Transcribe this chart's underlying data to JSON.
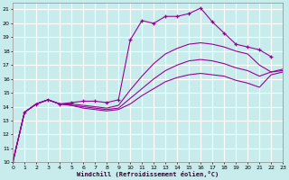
{
  "xlabel": "Windchill (Refroidissement éolien,°C)",
  "bg_color": "#c8ecec",
  "grid_color": "#ffffff",
  "line_color": "#990099",
  "xlim": [
    0,
    23
  ],
  "ylim": [
    10,
    21.5
  ],
  "xticks": [
    0,
    1,
    2,
    3,
    4,
    5,
    6,
    7,
    8,
    9,
    10,
    11,
    12,
    13,
    14,
    15,
    16,
    17,
    18,
    19,
    20,
    21,
    22,
    23
  ],
  "yticks": [
    10,
    11,
    12,
    13,
    14,
    15,
    16,
    17,
    18,
    19,
    20,
    21
  ],
  "curves": [
    {
      "x": [
        0,
        1,
        2,
        3,
        4,
        5,
        6,
        7,
        8,
        9,
        10,
        11,
        12,
        13,
        14,
        15,
        16,
        17,
        18,
        19,
        20,
        21,
        22
      ],
      "y": [
        10.0,
        13.6,
        14.2,
        14.5,
        14.2,
        14.3,
        14.4,
        14.4,
        14.3,
        14.5,
        18.8,
        20.2,
        20.0,
        20.5,
        20.5,
        20.7,
        21.1,
        20.1,
        19.3,
        18.5,
        18.3,
        18.1,
        17.6
      ],
      "has_markers": true
    },
    {
      "x": [
        0,
        1,
        2,
        3,
        4,
        5,
        6,
        7,
        8,
        9,
        10,
        11,
        12,
        13,
        14,
        15,
        16,
        17,
        18,
        19,
        20,
        21,
        22,
        23
      ],
      "y": [
        10.0,
        13.6,
        14.2,
        14.5,
        14.2,
        14.2,
        14.1,
        14.0,
        13.9,
        14.1,
        15.2,
        16.2,
        17.1,
        17.8,
        18.2,
        18.5,
        18.6,
        18.5,
        18.3,
        18.0,
        17.8,
        17.0,
        16.5,
        16.7
      ],
      "has_markers": false
    },
    {
      "x": [
        0,
        1,
        2,
        3,
        4,
        5,
        6,
        7,
        8,
        9,
        10,
        11,
        12,
        13,
        14,
        15,
        16,
        17,
        18,
        19,
        20,
        21,
        22,
        23
      ],
      "y": [
        10.0,
        13.6,
        14.2,
        14.5,
        14.2,
        14.1,
        14.0,
        13.9,
        13.8,
        13.9,
        14.6,
        15.3,
        16.0,
        16.6,
        17.0,
        17.3,
        17.4,
        17.3,
        17.1,
        16.8,
        16.6,
        16.2,
        16.5,
        16.6
      ],
      "has_markers": false
    },
    {
      "x": [
        0,
        1,
        2,
        3,
        4,
        5,
        6,
        7,
        8,
        9,
        10,
        11,
        12,
        13,
        14,
        15,
        16,
        17,
        18,
        19,
        20,
        21,
        22,
        23
      ],
      "y": [
        10.0,
        13.6,
        14.2,
        14.5,
        14.2,
        14.1,
        13.9,
        13.8,
        13.7,
        13.8,
        14.2,
        14.8,
        15.3,
        15.8,
        16.1,
        16.3,
        16.4,
        16.3,
        16.2,
        15.9,
        15.7,
        15.4,
        16.3,
        16.5
      ],
      "has_markers": false
    }
  ]
}
